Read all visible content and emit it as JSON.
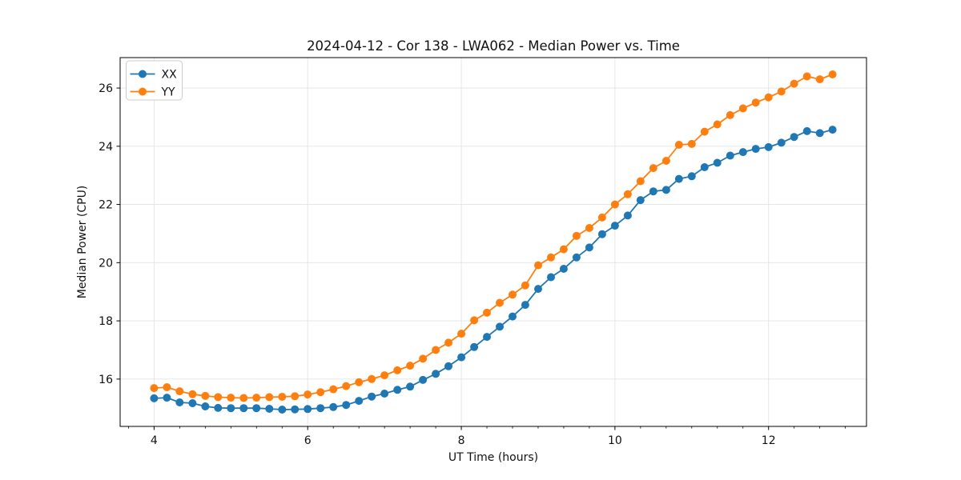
{
  "figure": {
    "background": "#ffffff",
    "spine_color": "#000000",
    "grid_color": "#e3e3e3",
    "text_color": "#111111"
  },
  "chart_data": {
    "type": "line",
    "title": "2024-04-12 - Cor 138 - LWA062 - Median Power vs. Time",
    "xlabel": "UT Time (hours)",
    "ylabel": "Median Power (CPU)",
    "xlim": [
      3.558,
      13.275
    ],
    "ylim": [
      14.374,
      27.046
    ],
    "x_major_ticks": [
      4,
      6,
      8,
      10,
      12
    ],
    "x_major_tick_labels": [
      "4",
      "6",
      "8",
      "10",
      "12"
    ],
    "x_minor_tick_step": 0.33333,
    "y_major_ticks": [
      16,
      18,
      20,
      22,
      24,
      26
    ],
    "y_major_tick_labels": [
      "16",
      "18",
      "20",
      "22",
      "24",
      "26"
    ],
    "grid": true,
    "legend_position": "upper-left",
    "marker": "circle",
    "x": [
      4.0,
      4.167,
      4.333,
      4.5,
      4.667,
      4.833,
      5.0,
      5.167,
      5.333,
      5.5,
      5.667,
      5.833,
      6.0,
      6.167,
      6.333,
      6.5,
      6.667,
      6.833,
      7.0,
      7.167,
      7.333,
      7.5,
      7.667,
      7.833,
      8.0,
      8.167,
      8.333,
      8.5,
      8.667,
      8.833,
      9.0,
      9.167,
      9.333,
      9.5,
      9.667,
      9.833,
      10.0,
      10.167,
      10.333,
      10.5,
      10.667,
      10.833,
      11.0,
      11.167,
      11.333,
      11.5,
      11.667,
      11.833,
      12.0,
      12.167,
      12.333,
      12.5,
      12.667,
      12.833
    ],
    "series": [
      {
        "name": "XX",
        "color": "#1f77b4",
        "values": [
          15.34,
          15.36,
          15.2,
          15.17,
          15.06,
          15.01,
          15.0,
          15.0,
          15.0,
          14.98,
          14.95,
          14.96,
          14.97,
          15.0,
          15.04,
          15.11,
          15.25,
          15.4,
          15.5,
          15.63,
          15.74,
          15.97,
          16.18,
          16.44,
          16.75,
          17.1,
          17.45,
          17.8,
          18.15,
          18.55,
          19.1,
          19.5,
          19.79,
          20.18,
          20.52,
          20.98,
          21.27,
          21.62,
          22.15,
          22.45,
          22.5,
          22.88,
          22.97,
          23.28,
          23.43,
          23.68,
          23.8,
          23.91,
          23.97,
          24.12,
          24.32,
          24.52,
          24.45,
          24.57
        ]
      },
      {
        "name": "YY",
        "color": "#ff7f0e",
        "values": [
          15.69,
          15.72,
          15.58,
          15.48,
          15.42,
          15.38,
          15.36,
          15.35,
          15.36,
          15.38,
          15.39,
          15.41,
          15.47,
          15.55,
          15.65,
          15.76,
          15.89,
          16.0,
          16.13,
          16.3,
          16.46,
          16.7,
          17.0,
          17.25,
          17.56,
          18.02,
          18.28,
          18.62,
          18.9,
          19.22,
          19.91,
          20.18,
          20.46,
          20.92,
          21.19,
          21.55,
          22.0,
          22.35,
          22.8,
          23.25,
          23.5,
          24.05,
          24.08,
          24.5,
          24.75,
          25.07,
          25.3,
          25.5,
          25.68,
          25.88,
          26.15,
          26.4,
          26.3,
          26.47
        ]
      }
    ]
  }
}
